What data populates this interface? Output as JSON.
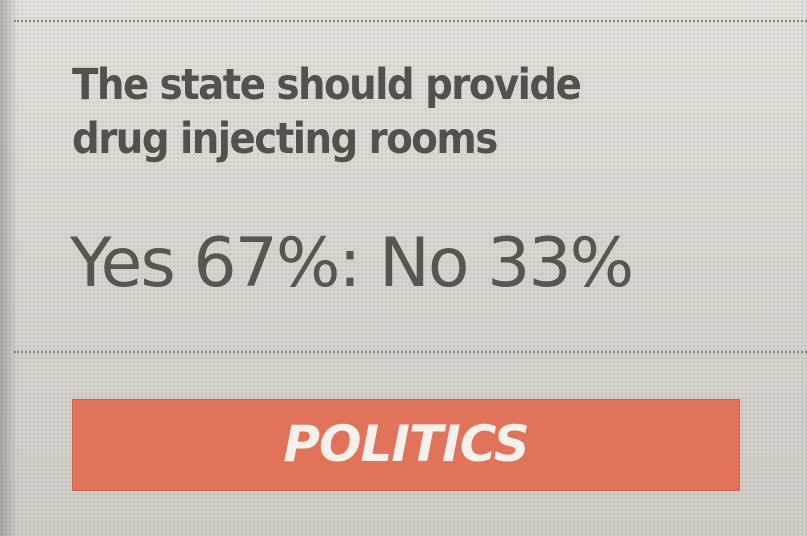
{
  "poll": {
    "question_line1": "The state should provide",
    "question_line2": "drug injecting rooms",
    "result": "Yes 67%: No 33%",
    "yes_percent": 67,
    "no_percent": 33
  },
  "section": {
    "label": "POLITICS",
    "color": "#e0735a"
  },
  "colors": {
    "paper": "#d9d6d0",
    "ink": "#55504a"
  }
}
